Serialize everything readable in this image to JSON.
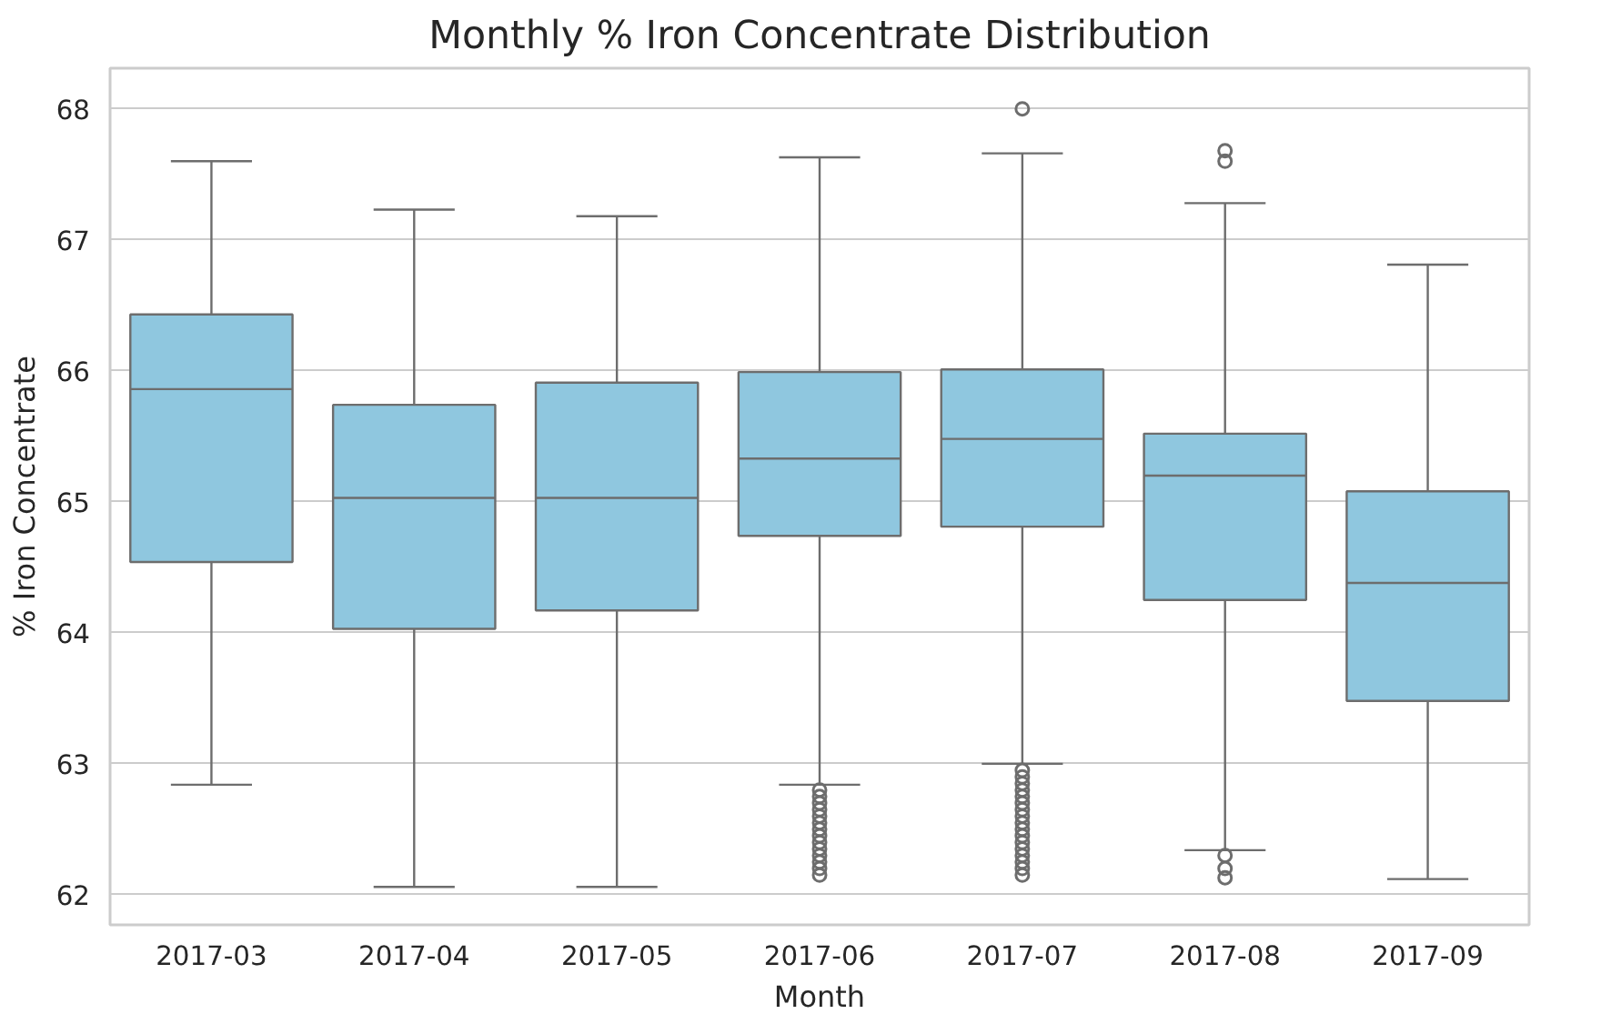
{
  "chart_data": {
    "type": "box",
    "title": "Monthly % Iron Concentrate Distribution",
    "xlabel": "Month",
    "ylabel": "% Iron Concentrate",
    "categories": [
      "2017-03",
      "2017-04",
      "2017-05",
      "2017-06",
      "2017-07",
      "2017-08",
      "2017-09"
    ],
    "color": "#8fc7df",
    "boxes": [
      {
        "low": 62.84,
        "q1": 64.54,
        "median": 65.86,
        "q3": 66.43,
        "high": 67.6
      },
      {
        "low": 62.06,
        "q1": 64.03,
        "median": 65.03,
        "q3": 65.74,
        "high": 67.23
      },
      {
        "low": 62.06,
        "q1": 64.17,
        "median": 65.03,
        "q3": 65.91,
        "high": 67.18
      },
      {
        "low": 62.84,
        "q1": 64.74,
        "median": 65.33,
        "q3": 65.99,
        "high": 67.63,
        "outliers": [
          62.15,
          62.2,
          62.25,
          62.3,
          62.35,
          62.4,
          62.45,
          62.5,
          62.55,
          62.6,
          62.65,
          62.7,
          62.75,
          62.8
        ]
      },
      {
        "low": 63.0,
        "q1": 64.81,
        "median": 65.48,
        "q3": 66.01,
        "high": 67.66,
        "outliers": [
          68.0,
          62.15,
          62.2,
          62.25,
          62.3,
          62.35,
          62.4,
          62.45,
          62.5,
          62.55,
          62.6,
          62.65,
          62.7,
          62.75,
          62.8,
          62.85,
          62.9,
          62.95
        ]
      },
      {
        "low": 62.34,
        "q1": 64.25,
        "median": 65.2,
        "q3": 65.52,
        "high": 67.28,
        "outliers": [
          67.6,
          67.68,
          62.3,
          62.2,
          62.13
        ]
      },
      {
        "low": 62.12,
        "q1": 63.48,
        "median": 64.38,
        "q3": 65.08,
        "high": 66.81
      }
    ],
    "ylim": [
      61.77,
      68.31
    ],
    "yticks": [
      62,
      63,
      64,
      65,
      66,
      67,
      68
    ],
    "grid": "y"
  }
}
